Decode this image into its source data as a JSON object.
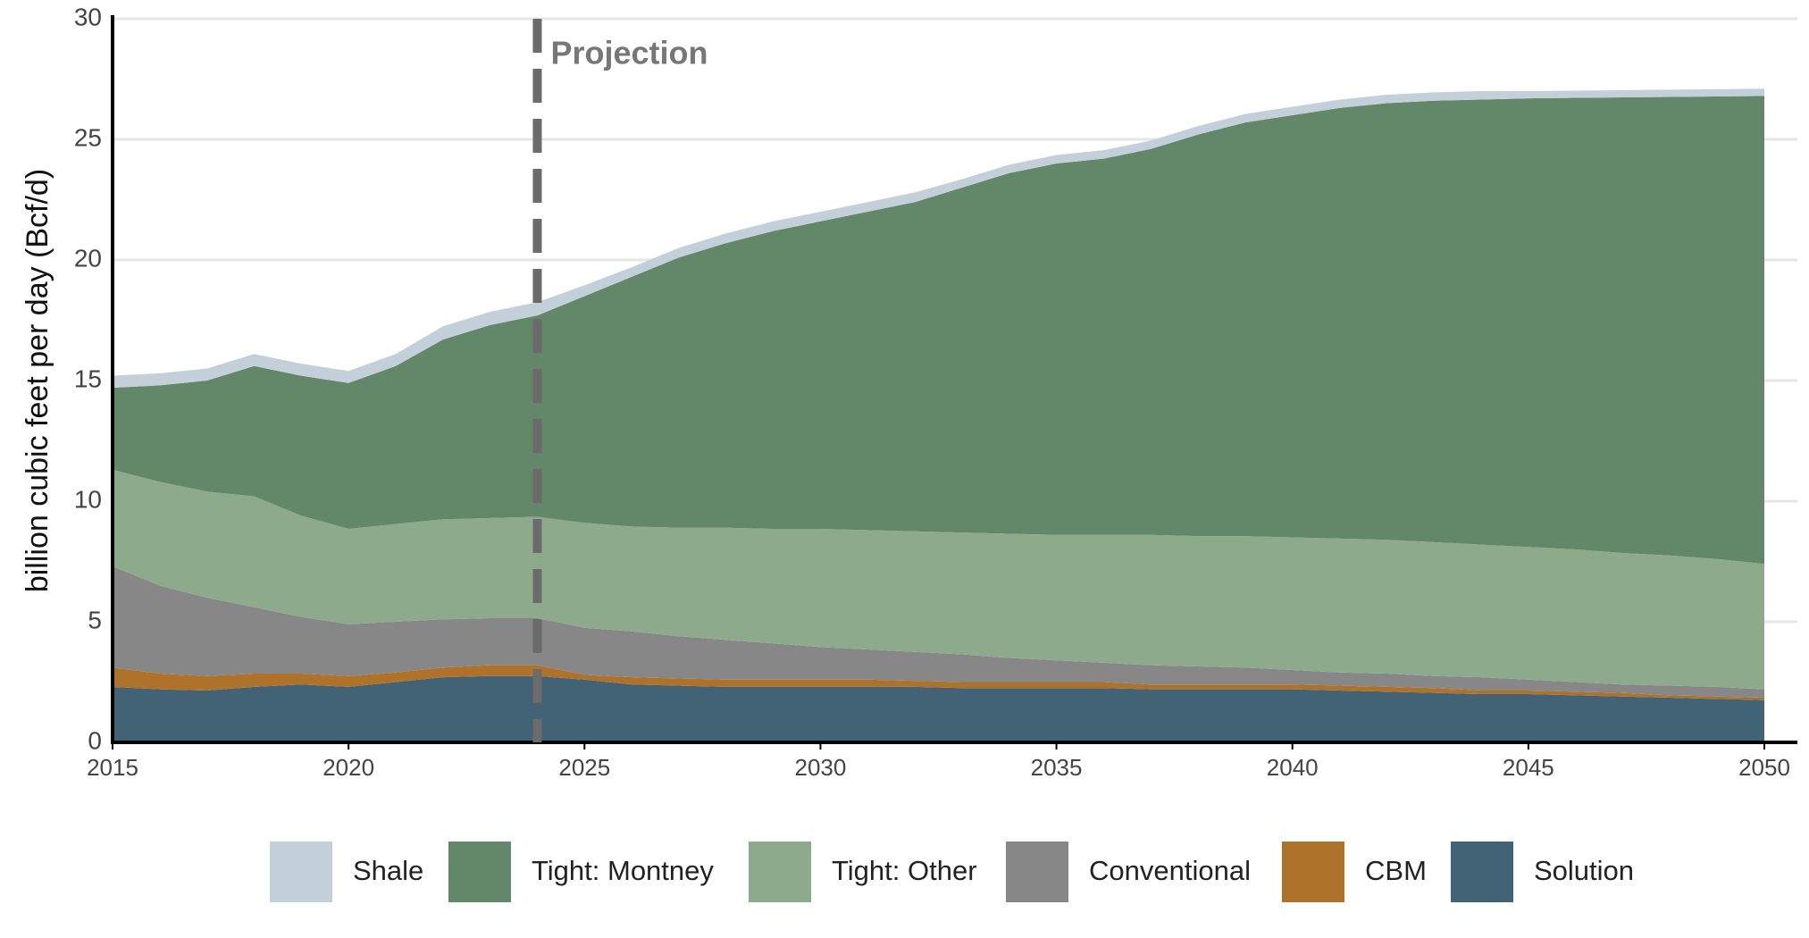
{
  "chart_data": {
    "type": "stacked-area",
    "y_label": "billion cubic feet per day (Bcf/d)",
    "x": [
      2015,
      2016,
      2017,
      2018,
      2019,
      2020,
      2021,
      2022,
      2023,
      2024,
      2025,
      2026,
      2027,
      2028,
      2029,
      2030,
      2031,
      2032,
      2033,
      2034,
      2035,
      2036,
      2037,
      2038,
      2039,
      2040,
      2041,
      2042,
      2043,
      2044,
      2045,
      2046,
      2047,
      2048,
      2049,
      2050
    ],
    "xlim": [
      2015,
      2050
    ],
    "xticks": [
      2015,
      2020,
      2025,
      2030,
      2035,
      2040,
      2045,
      2050
    ],
    "ylim": [
      0,
      30
    ],
    "yticks": [
      0,
      5,
      10,
      15,
      20,
      25,
      30
    ],
    "grid": true,
    "legend": "bottom",
    "projection": {
      "x": 2024,
      "label": "Projection"
    },
    "series": [
      {
        "name": "Shale",
        "color": "#c3d0da",
        "values": [
          0.5,
          0.5,
          0.5,
          0.5,
          0.5,
          0.5,
          0.5,
          0.55,
          0.55,
          0.55,
          0.45,
          0.4,
          0.4,
          0.4,
          0.4,
          0.4,
          0.4,
          0.4,
          0.35,
          0.35,
          0.35,
          0.35,
          0.35,
          0.35,
          0.35,
          0.35,
          0.35,
          0.35,
          0.35,
          0.35,
          0.3,
          0.3,
          0.3,
          0.3,
          0.3,
          0.3
        ]
      },
      {
        "name": "Tight: Montney",
        "color": "#628769",
        "values": [
          3.4,
          4.0,
          4.6,
          5.4,
          5.8,
          6.05,
          6.55,
          7.45,
          8.0,
          8.35,
          9.4,
          10.35,
          11.2,
          11.8,
          12.35,
          12.75,
          13.2,
          13.65,
          14.3,
          14.95,
          15.4,
          15.6,
          16.0,
          16.65,
          17.15,
          17.5,
          17.85,
          18.1,
          18.3,
          18.45,
          18.6,
          18.72,
          18.89,
          19.01,
          19.18,
          19.4
        ]
      },
      {
        "name": "Tight: Other",
        "color": "#8daa8c",
        "values": [
          4.0,
          4.3,
          4.4,
          4.6,
          4.2,
          3.95,
          4.05,
          4.15,
          4.15,
          4.2,
          4.35,
          4.35,
          4.5,
          4.65,
          4.75,
          4.9,
          4.95,
          5.0,
          5.05,
          5.15,
          5.2,
          5.3,
          5.4,
          5.4,
          5.45,
          5.5,
          5.55,
          5.55,
          5.55,
          5.5,
          5.5,
          5.5,
          5.45,
          5.4,
          5.3,
          5.2
        ]
      },
      {
        "name": "Conventional",
        "color": "#878787",
        "values": [
          4.2,
          3.65,
          3.25,
          2.75,
          2.35,
          2.15,
          2.1,
          2.0,
          1.95,
          1.95,
          1.95,
          1.9,
          1.75,
          1.65,
          1.5,
          1.35,
          1.25,
          1.2,
          1.15,
          1.0,
          0.9,
          0.8,
          0.8,
          0.75,
          0.7,
          0.6,
          0.55,
          0.55,
          0.5,
          0.55,
          0.45,
          0.4,
          0.35,
          0.4,
          0.4,
          0.35
        ]
      },
      {
        "name": "CBM",
        "color": "#ae722a",
        "values": [
          0.8,
          0.65,
          0.6,
          0.55,
          0.45,
          0.45,
          0.4,
          0.4,
          0.45,
          0.45,
          0.2,
          0.3,
          0.3,
          0.3,
          0.3,
          0.3,
          0.3,
          0.25,
          0.25,
          0.25,
          0.25,
          0.25,
          0.2,
          0.2,
          0.2,
          0.2,
          0.2,
          0.2,
          0.2,
          0.15,
          0.15,
          0.15,
          0.15,
          0.1,
          0.1,
          0.1
        ]
      },
      {
        "name": "Solution",
        "color": "#426276",
        "values": [
          2.3,
          2.2,
          2.15,
          2.3,
          2.4,
          2.3,
          2.5,
          2.7,
          2.75,
          2.75,
          2.6,
          2.4,
          2.35,
          2.3,
          2.3,
          2.3,
          2.3,
          2.3,
          2.25,
          2.25,
          2.25,
          2.25,
          2.2,
          2.2,
          2.2,
          2.2,
          2.15,
          2.1,
          2.05,
          2.0,
          2.0,
          1.95,
          1.9,
          1.85,
          1.8,
          1.75
        ]
      }
    ]
  }
}
